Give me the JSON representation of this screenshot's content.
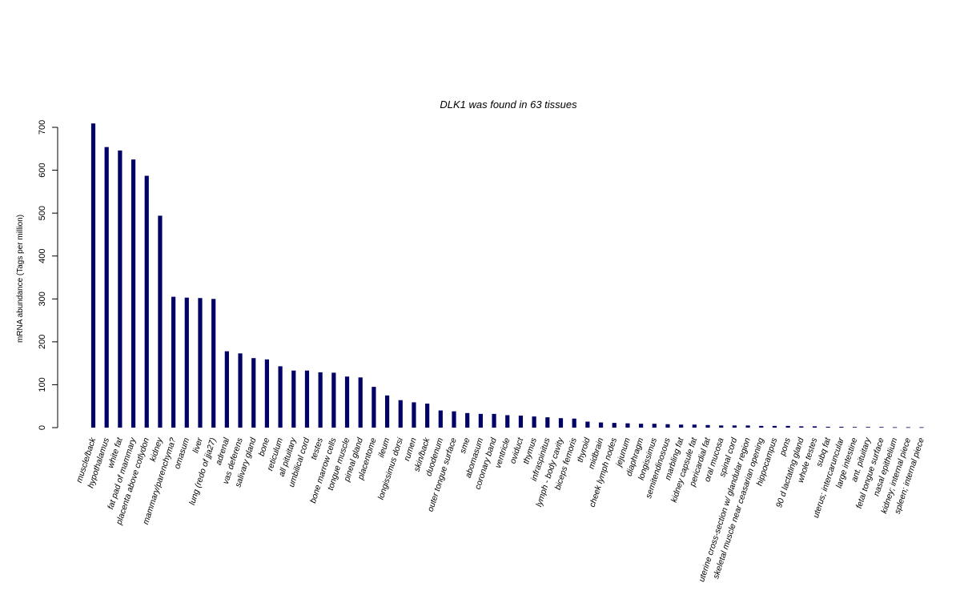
{
  "chart_data": {
    "type": "bar",
    "title": "DLK1  was found in  63  tissues",
    "ylabel": "mRNA abundance (Tags per million)",
    "xlabel": "",
    "ylim": [
      0,
      700
    ],
    "yticks": [
      0,
      100,
      200,
      300,
      400,
      500,
      600,
      700
    ],
    "grid": false,
    "bar_color": "#000066",
    "categories": [
      "muscle/back",
      "hypothalamus",
      "white fat",
      "fat pad of mammary",
      "placenta above cotlydon",
      "kidney",
      "mammary/parenchyma?",
      "omasum",
      "liver",
      "lung (redo of jja27)",
      "adrenal",
      "vas deferens",
      "salivary gland",
      "bone",
      "reticulum",
      "all pituitary",
      "umbilical cord",
      "testes",
      "bone marrow cells",
      "tongue muscle",
      "pineal gland",
      "placentome",
      "ileum",
      "longissimus dorsi",
      "rumen",
      "skin/back",
      "duodenum",
      "outer tongue surface",
      "sme",
      "abomasum",
      "coronary band",
      "ventricle",
      "oviduct",
      "thymus",
      "infraspinitus",
      "lymph - body cavity",
      "biceps femoris",
      "thyroid",
      "midbrain",
      "cheek lymph nodes",
      "jejunum",
      "diaphragm",
      "longissimus",
      "semitendinosous",
      "marbling fat",
      "kidney capsule fat",
      "pericardial fat",
      "oral mucosa",
      "spinal cord",
      "uterine cross-section w/ glandular region",
      "skeletal muscle near ceasarian opening",
      "hippocampus",
      "pons",
      "90 d lactating gland",
      "whole testes",
      "subq fat",
      "uterus; intercaruncular",
      "large intestine",
      "ant. pituitary",
      "fetal tongue surface",
      "nasal epithelium",
      "kidney; internal piece",
      "spleen; internal piece"
    ],
    "values": [
      709,
      654,
      646,
      625,
      587,
      494,
      305,
      303,
      302,
      300,
      178,
      173,
      162,
      159,
      143,
      133,
      133,
      129,
      128,
      119,
      117,
      95,
      75,
      64,
      59,
      56,
      40,
      38,
      34,
      32,
      32,
      29,
      28,
      26,
      24,
      22,
      21,
      14,
      12,
      11,
      10,
      9,
      9,
      8,
      7,
      7,
      6,
      5,
      5,
      5,
      4,
      4,
      4,
      3,
      3,
      2,
      2,
      1.5,
      1.5,
      1.5,
      1,
      1,
      1
    ]
  }
}
